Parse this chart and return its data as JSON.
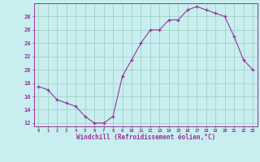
{
  "x": [
    0,
    1,
    2,
    3,
    4,
    5,
    6,
    7,
    8,
    9,
    10,
    11,
    12,
    13,
    14,
    15,
    16,
    17,
    18,
    19,
    20,
    21,
    22,
    23
  ],
  "y": [
    17.5,
    17.0,
    15.5,
    15.0,
    14.5,
    13.0,
    12.0,
    12.0,
    13.0,
    19.0,
    21.5,
    24.0,
    26.0,
    26.0,
    27.5,
    27.5,
    29.0,
    29.5,
    29.0,
    28.5,
    28.0,
    25.0,
    21.5,
    20.0
  ],
  "line_color": "#993399",
  "marker_color": "#993399",
  "bg_color": "#c8eef0",
  "grid_color": "#99ccbb",
  "xlabel": "Windchill (Refroidissement éolien,°C)",
  "xlim": [
    -0.5,
    23.5
  ],
  "ylim": [
    11.5,
    30.0
  ],
  "yticks": [
    12,
    14,
    16,
    18,
    20,
    22,
    24,
    26,
    28
  ],
  "xticks": [
    0,
    1,
    2,
    3,
    4,
    5,
    6,
    7,
    8,
    9,
    10,
    11,
    12,
    13,
    14,
    15,
    16,
    17,
    18,
    19,
    20,
    21,
    22,
    23
  ],
  "tick_label_color": "#993399",
  "xlabel_color": "#993399",
  "spine_color": "#993399",
  "axis_bg_color": "#c8eef0"
}
